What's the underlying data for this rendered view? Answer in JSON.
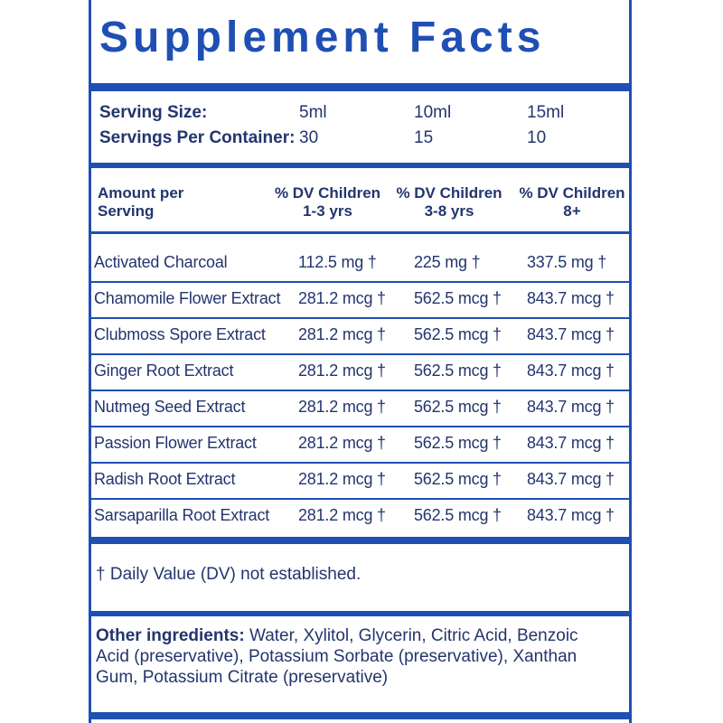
{
  "title": "Supplement Facts",
  "serving": {
    "rows": [
      [
        "Serving Size:",
        "5ml",
        "10ml",
        "15ml"
      ],
      [
        "Servings Per Container:",
        "30",
        "15",
        "10"
      ]
    ]
  },
  "table": {
    "header": [
      "Amount per Serving",
      "% DV Children 1-3 yrs",
      "% DV Children 3-8 yrs",
      "% DV Children 8+"
    ],
    "rows": [
      [
        "Activated Charcoal",
        "112.5 mg †",
        "225 mg †",
        "337.5  mg †"
      ],
      [
        "Chamomile Flower Extract",
        "281.2 mcg †",
        "562.5 mcg †",
        "843.7 mcg †"
      ],
      [
        "Clubmoss Spore Extract",
        "281.2 mcg †",
        "562.5 mcg †",
        "843.7 mcg †"
      ],
      [
        "Ginger Root Extract",
        "281.2 mcg †",
        "562.5 mcg †",
        "843.7 mcg †"
      ],
      [
        "Nutmeg Seed Extract",
        "281.2 mcg †",
        "562.5 mcg †",
        "843.7 mcg †"
      ],
      [
        "Passion Flower Extract",
        "281.2 mcg †",
        "562.5 mcg †",
        "843.7 mcg †"
      ],
      [
        "Radish Root Extract",
        "281.2 mcg †",
        "562.5 mcg †",
        "843.7 mcg †"
      ],
      [
        "Sarsaparilla Root Extract",
        "281.2 mcg †",
        "562.5 mcg †",
        "843.7 mcg †"
      ]
    ]
  },
  "footnote": "† Daily Value (DV) not established.",
  "other_ingredients": {
    "label": "Other ingredients:",
    "text": "Water, Xylitol, Glycerin, Citric Acid, Benzoic Acid (preservative), Potassium Sorbate (preservative), Xanthan Gum, Potassium Citrate (preservative)"
  }
}
